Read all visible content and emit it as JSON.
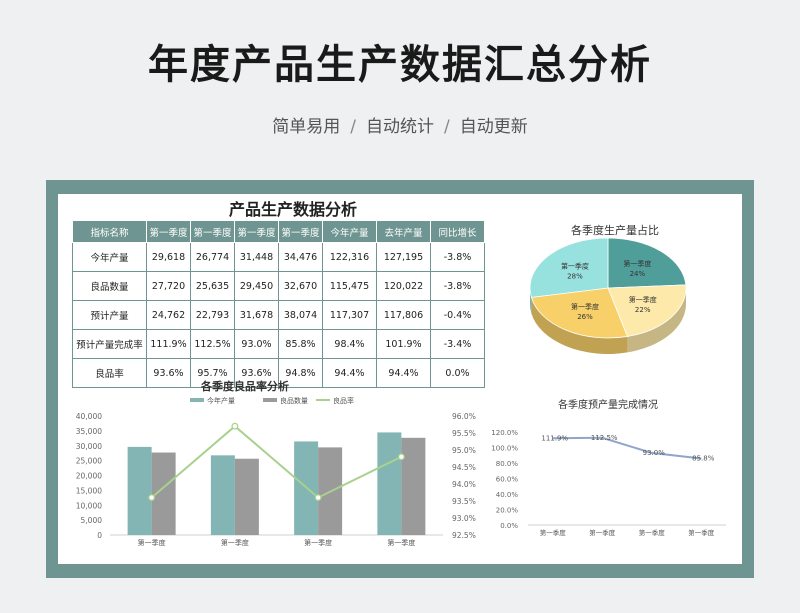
{
  "header": {
    "title": "年度产品生产数据汇总分析",
    "subtitle_items": [
      "简单易用",
      "自动统计",
      "自动更新"
    ],
    "separator": "/"
  },
  "sheet": {
    "title": "产品生产数据分析",
    "table": {
      "headers": [
        "指标名称",
        "第一季度",
        "第一季度",
        "第一季度",
        "第一季度",
        "今年产量",
        "去年产量",
        "同比增长"
      ],
      "rows": [
        [
          "今年产量",
          "29,618",
          "26,774",
          "31,448",
          "34,476",
          "122,316",
          "127,195",
          "-3.8%"
        ],
        [
          "良品数量",
          "27,720",
          "25,635",
          "29,450",
          "32,670",
          "115,475",
          "120,022",
          "-3.8%"
        ],
        [
          "预计产量",
          "24,762",
          "22,793",
          "31,678",
          "38,074",
          "117,307",
          "117,806",
          "-0.4%"
        ],
        [
          "预计产量完成率",
          "111.9%",
          "112.5%",
          "93.0%",
          "85.8%",
          "98.4%",
          "101.9%",
          "-3.4%"
        ],
        [
          "良品率",
          "93.6%",
          "95.7%",
          "93.6%",
          "94.8%",
          "94.4%",
          "94.4%",
          "0.0%"
        ]
      ]
    }
  },
  "colors": {
    "teal": "#6f9592",
    "bar_teal": "#82b5b3",
    "bar_gray": "#9a9a9a",
    "line_green": "#a9d18e",
    "pie": [
      "#4f9e99",
      "#fde9a9",
      "#f7d06a",
      "#97e1df"
    ],
    "line_blue": "#8fa5cc"
  },
  "chart_data": [
    {
      "type": "bar",
      "title": "各季度良品率分析",
      "categories": [
        "第一季度",
        "第一季度",
        "第一季度",
        "第一季度"
      ],
      "series": [
        {
          "name": "今年产量",
          "values": [
            29618,
            26774,
            31448,
            34476
          ],
          "axis": "left"
        },
        {
          "name": "良品数量",
          "values": [
            27720,
            25635,
            29450,
            32670
          ],
          "axis": "left"
        },
        {
          "name": "良品率",
          "type": "line",
          "values": [
            93.6,
            95.7,
            93.6,
            94.8
          ],
          "axis": "right"
        }
      ],
      "y_ticks": [
        "40,000",
        "35,000",
        "30,000",
        "25,000",
        "20,000",
        "15,000",
        "10,000",
        "5,000",
        "0"
      ],
      "ylim": [
        0,
        40000
      ],
      "y2_ticks": [
        "96.0%",
        "95.5%",
        "95.0%",
        "94.5%",
        "94.0%",
        "93.5%",
        "93.0%",
        "92.5%"
      ],
      "y2lim": [
        92.5,
        96.0
      ],
      "legend": "top"
    },
    {
      "type": "pie",
      "title": "各季度生产量占比",
      "labels": [
        "第一季度",
        "第一季度",
        "第一季度",
        "第一季度"
      ],
      "values": [
        24,
        22,
        26,
        28
      ],
      "value_labels": [
        "24%",
        "22%",
        "26%",
        "28%"
      ]
    },
    {
      "type": "line",
      "title": "各季度预产量完成情况",
      "categories": [
        "第一季度",
        "第一季度",
        "第一季度",
        "第一季度"
      ],
      "values": [
        111.9,
        112.5,
        93.0,
        85.8
      ],
      "value_labels": [
        "111.9%",
        "112.5%",
        "93.0%",
        "85.8%"
      ],
      "y_ticks": [
        "120.0%",
        "100.0%",
        "80.0%",
        "60.0%",
        "40.0%",
        "20.0%",
        "0.0%"
      ],
      "ylim": [
        0,
        120
      ]
    }
  ]
}
